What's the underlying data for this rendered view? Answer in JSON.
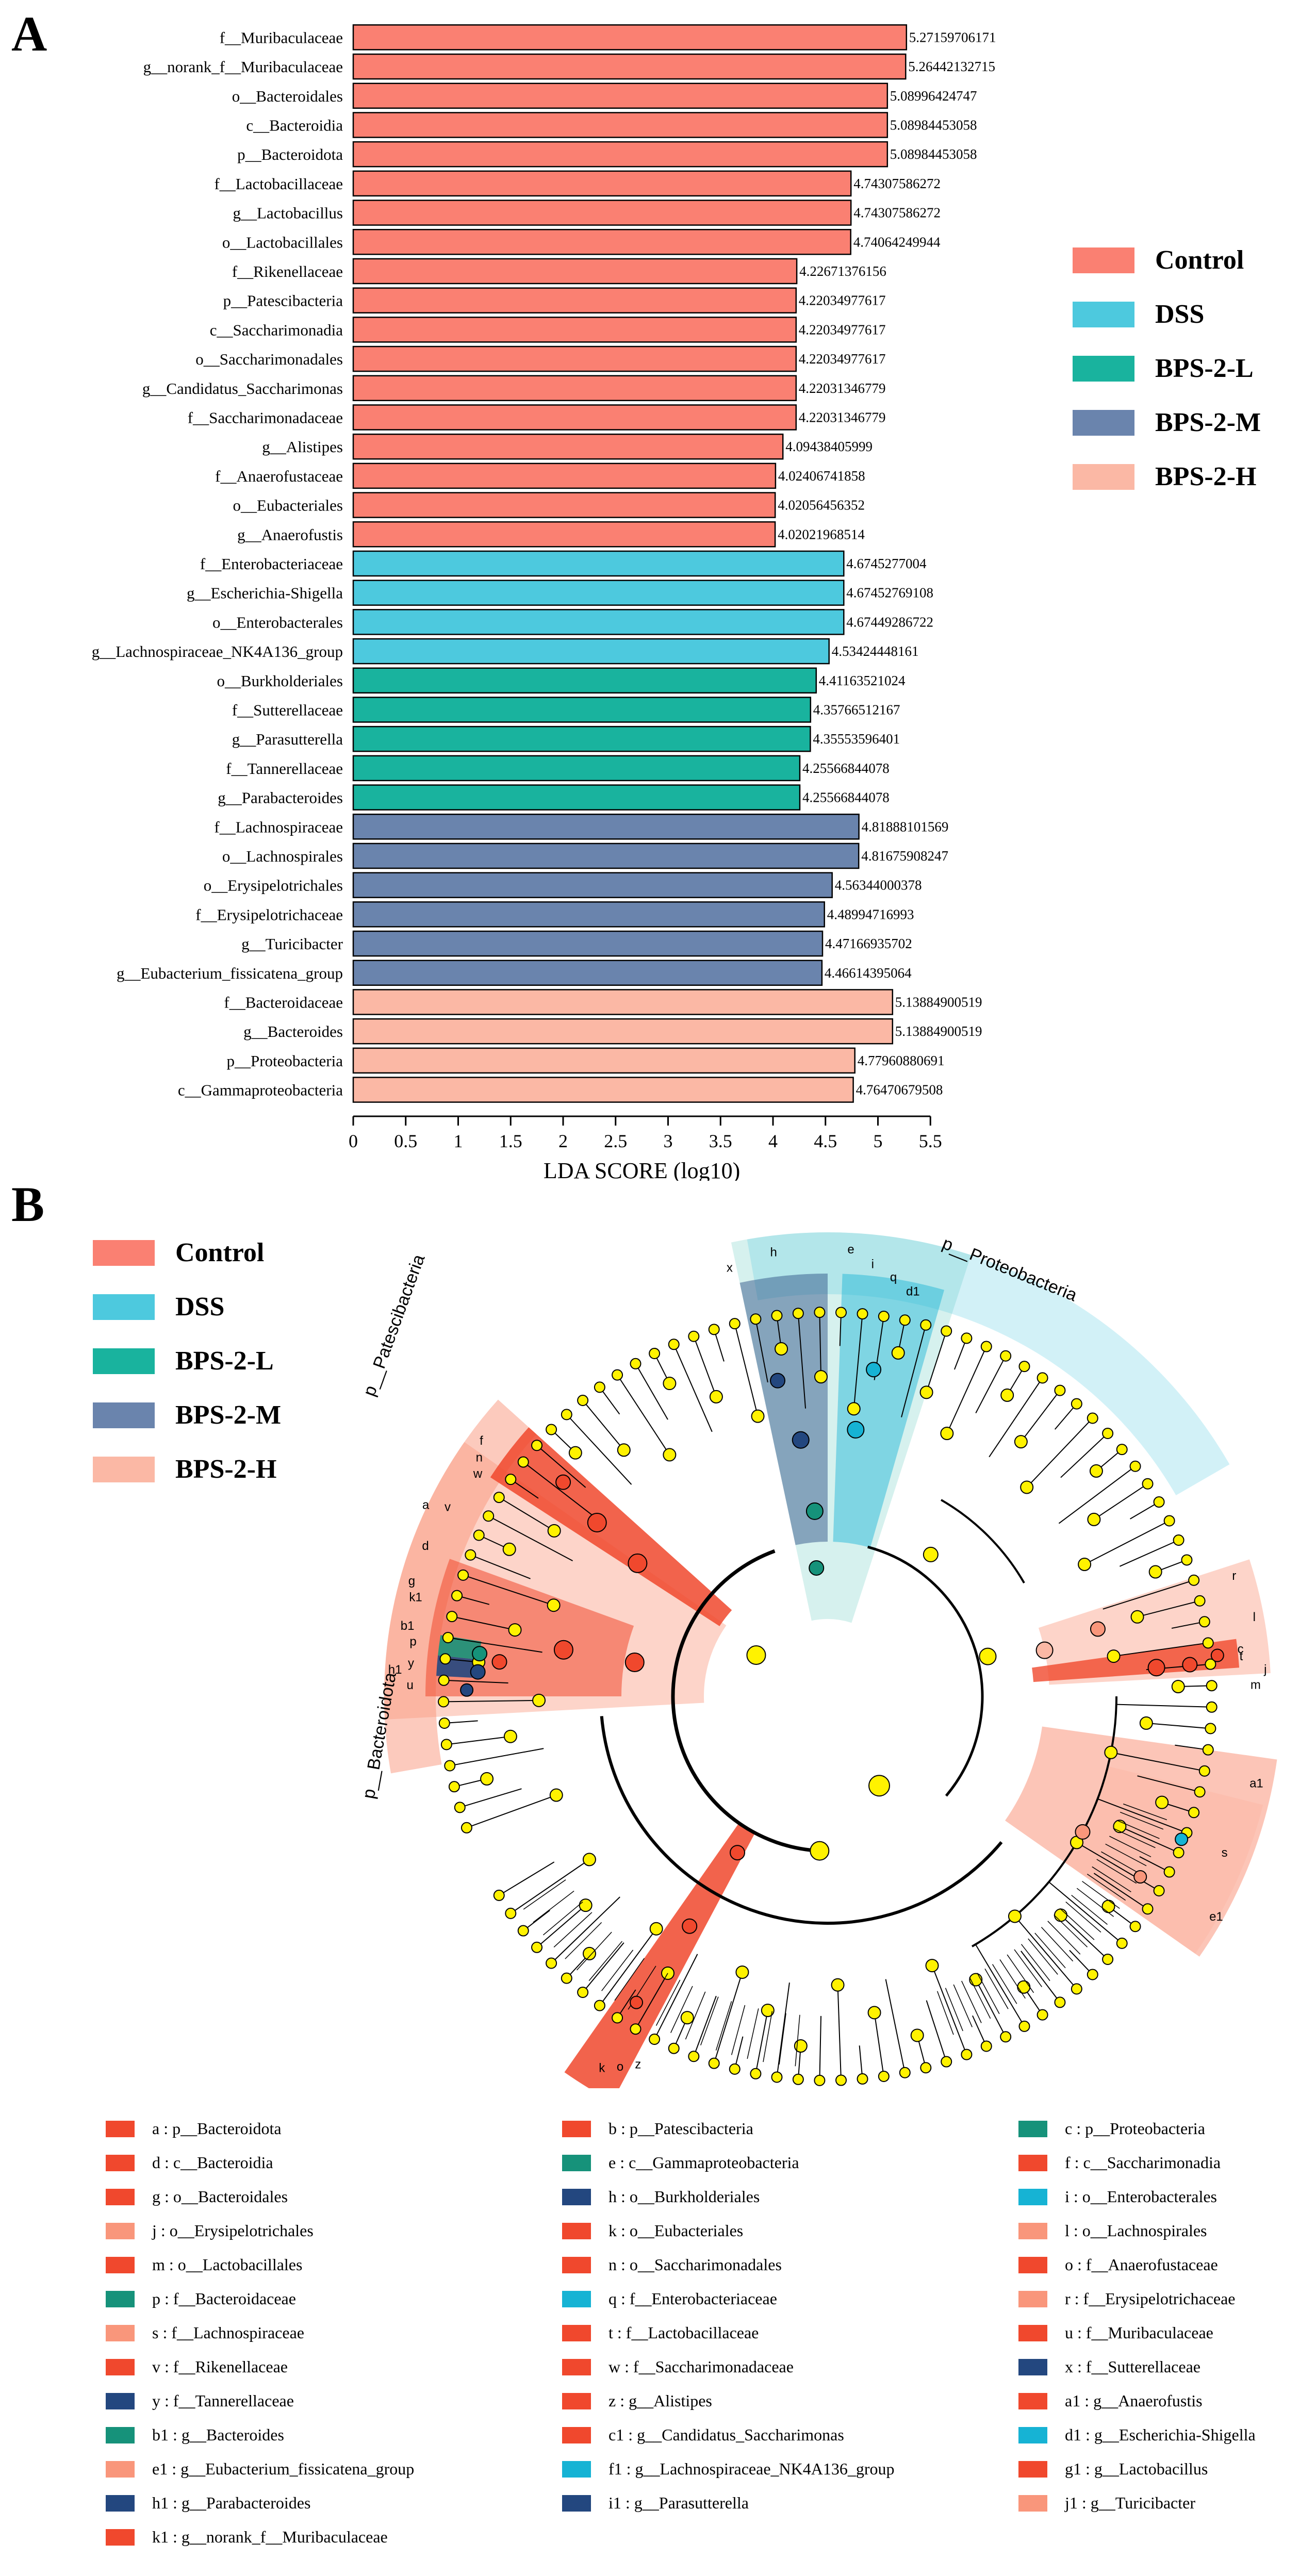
{
  "colors": {
    "Control": "#fa8072",
    "DSS": "#4dc9de",
    "BPS-2-L": "#19b39e",
    "BPS-2-M": "#6a84ad",
    "BPS-2-H": "#fbb8a5",
    "nonsig": "#fff200",
    "clade_Control": "#f0482d",
    "clade_DSS": "#16b3d4",
    "clade_BPS-2-L": "#16927a",
    "clade_BPS-2-M": "#23477f",
    "clade_BPS-2-H": "#f9967b"
  },
  "panel_a": {
    "label": "A"
  },
  "panel_b": {
    "label": "B"
  },
  "legend_a": [
    "Control",
    "DSS",
    "BPS-2-L",
    "BPS-2-M",
    "BPS-2-H"
  ],
  "legend_b": [
    "Control",
    "DSS",
    "BPS-2-L",
    "BPS-2-M",
    "BPS-2-H"
  ],
  "chart_data": [
    {
      "type": "bar",
      "orientation": "horizontal",
      "xlabel": "LDA SCORE (log10)",
      "xlim": [
        0,
        5.5
      ],
      "xticks": [
        "0",
        "0.5",
        "1",
        "1.5",
        "2",
        "2.5",
        "3",
        "3.5",
        "4",
        "4.5",
        "5",
        "5.5"
      ],
      "categories": [
        "f__Muribaculaceae",
        "g__norank_f__Muribaculaceae",
        "o__Bacteroidales",
        "c__Bacteroidia",
        "p__Bacteroidota",
        "f__Lactobacillaceae",
        "g__Lactobacillus",
        "o__Lactobacillales",
        "f__Rikenellaceae",
        "p__Patescibacteria",
        "c__Saccharimonadia",
        "o__Saccharimonadales",
        "g__Candidatus_Saccharimonas",
        "f__Saccharimonadaceae",
        "g__Alistipes",
        "f__Anaerofustaceae",
        "o__Eubacteriales",
        "g__Anaerofustis",
        "f__Enterobacteriaceae",
        "g__Escherichia-Shigella",
        "o__Enterobacterales",
        "g__Lachnospiraceae_NK4A136_group",
        "o__Burkholderiales",
        "f__Sutterellaceae",
        "g__Parasutterella",
        "f__Tannerellaceae",
        "g__Parabacteroides",
        "f__Lachnospiraceae",
        "o__Lachnospirales",
        "o__Erysipelotrichales",
        "f__Erysipelotrichaceae",
        "g__Turicibacter",
        "g__Eubacterium_fissicatena_group",
        "f__Bacteroidaceae",
        "g__Bacteroides",
        "p__Proteobacteria",
        "c__Gammaproteobacteria"
      ],
      "values": [
        5.27159706171,
        5.26442132715,
        5.08996424747,
        5.08984453058,
        5.08984453058,
        4.74307586272,
        4.74307586272,
        4.74064249944,
        4.22671376156,
        4.22034977617,
        4.22034977617,
        4.22034977617,
        4.22031346779,
        4.22031346779,
        4.09438405999,
        4.02406741858,
        4.02056456352,
        4.02021968514,
        4.6745277004,
        4.67452769108,
        4.67449286722,
        4.53424448161,
        4.41163521024,
        4.35766512167,
        4.35553596401,
        4.25566844078,
        4.25566844078,
        4.81888101569,
        4.81675908247,
        4.56344000378,
        4.48994716993,
        4.47166935702,
        4.46614395064,
        5.13884900519,
        5.13884900519,
        4.77960880691,
        4.76470679508
      ],
      "value_labels": [
        "5.27159706171",
        "5.26442132715",
        "5.08996424747",
        "5.08984453058",
        "5.08984453058",
        "4.74307586272",
        "4.74307586272",
        "4.74064249944",
        "4.22671376156",
        "4.22034977617",
        "4.22034977617",
        "4.22034977617",
        "4.22031346779",
        "4.22031346779",
        "4.09438405999",
        "4.02406741858",
        "4.02056456352",
        "4.02021968514",
        "4.6745277004",
        "4.67452769108",
        "4.67449286722",
        "4.53424448161",
        "4.41163521024",
        "4.35766512167",
        "4.35553596401",
        "4.25566844078",
        "4.25566844078",
        "4.81888101569",
        "4.81675908247",
        "4.56344000378",
        "4.48994716993",
        "4.47166935702",
        "4.46614395064",
        "5.13884900519",
        "5.13884900519",
        "4.77960880691",
        "4.76470679508"
      ],
      "groups": [
        "Control",
        "Control",
        "Control",
        "Control",
        "Control",
        "Control",
        "Control",
        "Control",
        "Control",
        "Control",
        "Control",
        "Control",
        "Control",
        "Control",
        "Control",
        "Control",
        "Control",
        "Control",
        "DSS",
        "DSS",
        "DSS",
        "DSS",
        "BPS-2-L",
        "BPS-2-L",
        "BPS-2-L",
        "BPS-2-L",
        "BPS-2-L",
        "BPS-2-M",
        "BPS-2-M",
        "BPS-2-M",
        "BPS-2-M",
        "BPS-2-M",
        "BPS-2-M",
        "BPS-2-H",
        "BPS-2-H",
        "BPS-2-H",
        "BPS-2-H"
      ],
      "legend": [
        "Control",
        "DSS",
        "BPS-2-L",
        "BPS-2-M",
        "BPS-2-H"
      ]
    },
    {
      "type": "cladogram",
      "clade_labels": [
        "p__Proteobacteria",
        "p__Patescibacteria",
        "p__Bacteroidota"
      ],
      "sector_letters": [
        "x",
        "h",
        "e",
        "i",
        "q",
        "d1",
        "r",
        "l",
        "j",
        "c",
        "t",
        "m",
        "a1",
        "k",
        "o",
        "z",
        "s",
        "f",
        "n",
        "w",
        "v",
        "p",
        "y",
        "u",
        "b1",
        "h1",
        "k1",
        "g",
        "d",
        "a",
        "e1"
      ],
      "legend": [
        {
          "key": "a",
          "taxon": "p__Bacteroidota",
          "group": "Control",
          "text": "a : p__Bacteroidota"
        },
        {
          "key": "b",
          "taxon": "p__Patescibacteria",
          "group": "Control",
          "text": "b : p__Patescibacteria"
        },
        {
          "key": "c",
          "taxon": "p__Proteobacteria",
          "group": "BPS-2-L",
          "text": "c : p__Proteobacteria"
        },
        {
          "key": "d",
          "taxon": "c__Bacteroidia",
          "group": "Control",
          "text": "d : c__Bacteroidia"
        },
        {
          "key": "e",
          "taxon": "c__Gammaproteobacteria",
          "group": "BPS-2-L",
          "text": "e : c__Gammaproteobacteria"
        },
        {
          "key": "f",
          "taxon": "c__Saccharimonadia",
          "group": "Control",
          "text": "f : c__Saccharimonadia"
        },
        {
          "key": "g",
          "taxon": "o__Bacteroidales",
          "group": "Control",
          "text": "g : o__Bacteroidales"
        },
        {
          "key": "h",
          "taxon": "o__Burkholderiales",
          "group": "BPS-2-M",
          "text": "h : o__Burkholderiales"
        },
        {
          "key": "i",
          "taxon": "o__Enterobacterales",
          "group": "DSS",
          "text": "i : o__Enterobacterales"
        },
        {
          "key": "j",
          "taxon": "o__Erysipelotrichales",
          "group": "BPS-2-H",
          "text": "j : o__Erysipelotrichales"
        },
        {
          "key": "k",
          "taxon": "o__Eubacteriales",
          "group": "Control",
          "text": "k : o__Eubacteriales"
        },
        {
          "key": "l",
          "taxon": "o__Lachnospirales",
          "group": "BPS-2-H",
          "text": "l : o__Lachnospirales"
        },
        {
          "key": "m",
          "taxon": "o__Lactobacillales",
          "group": "Control",
          "text": "m : o__Lactobacillales"
        },
        {
          "key": "n",
          "taxon": "o__Saccharimonadales",
          "group": "Control",
          "text": "n : o__Saccharimonadales"
        },
        {
          "key": "o",
          "taxon": "f__Anaerofustaceae",
          "group": "Control",
          "text": "o : f__Anaerofustaceae"
        },
        {
          "key": "p",
          "taxon": "f__Bacteroidaceae",
          "group": "BPS-2-L",
          "text": "p : f__Bacteroidaceae"
        },
        {
          "key": "q",
          "taxon": "f__Enterobacteriaceae",
          "group": "DSS",
          "text": "q : f__Enterobacteriaceae"
        },
        {
          "key": "r",
          "taxon": "f__Erysipelotrichaceae",
          "group": "BPS-2-H",
          "text": "r : f__Erysipelotrichaceae"
        },
        {
          "key": "s",
          "taxon": "f__Lachnospiraceae",
          "group": "BPS-2-H",
          "text": "s : f__Lachnospiraceae"
        },
        {
          "key": "t",
          "taxon": "f__Lactobacillaceae",
          "group": "Control",
          "text": "t : f__Lactobacillaceae"
        },
        {
          "key": "u",
          "taxon": "f__Muribaculaceae",
          "group": "Control",
          "text": "u : f__Muribaculaceae"
        },
        {
          "key": "v",
          "taxon": "f__Rikenellaceae",
          "group": "Control",
          "text": "v : f__Rikenellaceae"
        },
        {
          "key": "w",
          "taxon": "f__Saccharimonadaceae",
          "group": "Control",
          "text": "w : f__Saccharimonadaceae"
        },
        {
          "key": "x",
          "taxon": "f__Sutterellaceae",
          "group": "BPS-2-M",
          "text": "x : f__Sutterellaceae"
        },
        {
          "key": "y",
          "taxon": "f__Tannerellaceae",
          "group": "BPS-2-M",
          "text": "y : f__Tannerellaceae"
        },
        {
          "key": "z",
          "taxon": "g__Alistipes",
          "group": "Control",
          "text": "z : g__Alistipes"
        },
        {
          "key": "a1",
          "taxon": "g__Anaerofustis",
          "group": "Control",
          "text": "a1 : g__Anaerofustis"
        },
        {
          "key": "b1",
          "taxon": "g__Bacteroides",
          "group": "BPS-2-L",
          "text": "b1 : g__Bacteroides"
        },
        {
          "key": "c1",
          "taxon": "g__Candidatus_Saccharimonas",
          "group": "Control",
          "text": "c1 : g__Candidatus_Saccharimonas"
        },
        {
          "key": "d1",
          "taxon": "g__Escherichia-Shigella",
          "group": "DSS",
          "text": "d1 : g__Escherichia-Shigella"
        },
        {
          "key": "e1",
          "taxon": "g__Eubacterium_fissicatena_group",
          "group": "BPS-2-H",
          "text": "e1 : g__Eubacterium_fissicatena_group"
        },
        {
          "key": "f1",
          "taxon": "g__Lachnospiraceae_NK4A136_group",
          "group": "DSS",
          "text": "f1 : g__Lachnospiraceae_NK4A136_group"
        },
        {
          "key": "g1",
          "taxon": "g__Lactobacillus",
          "group": "Control",
          "text": "g1 : g__Lactobacillus"
        },
        {
          "key": "h1",
          "taxon": "g__Parabacteroides",
          "group": "BPS-2-M",
          "text": "h1 : g__Parabacteroides"
        },
        {
          "key": "i1",
          "taxon": "g__Parasutterella",
          "group": "BPS-2-M",
          "text": "i1 : g__Parasutterella"
        },
        {
          "key": "j1",
          "taxon": "g__Turicibacter",
          "group": "BPS-2-H",
          "text": "j1 : g__Turicibacter"
        },
        {
          "key": "k1",
          "taxon": "g__norank_f__Muribaculaceae",
          "group": "Control",
          "text": "k1 : g__norank_f__Muribaculaceae"
        }
      ]
    }
  ]
}
